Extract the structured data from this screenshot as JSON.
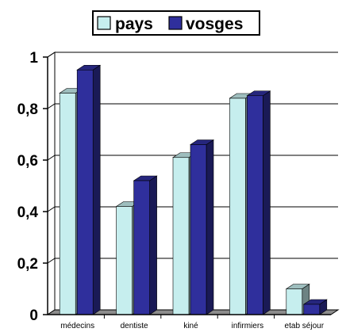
{
  "chart_data": {
    "type": "bar",
    "style": "3d-clustered",
    "categories": [
      "médecins",
      "dentiste",
      "kiné",
      "infirmiers",
      "etab séjour"
    ],
    "series": [
      {
        "name": "pays",
        "values": [
          0.86,
          0.42,
          0.61,
          0.84,
          0.1
        ]
      },
      {
        "name": "vosges",
        "values": [
          0.95,
          0.52,
          0.66,
          0.85,
          0.04
        ]
      }
    ],
    "ylim": [
      0,
      1
    ],
    "yticks": [
      0,
      0.2,
      0.4,
      0.6,
      0.8,
      1
    ],
    "ytick_labels": [
      "0",
      "0,2",
      "0,4",
      "0,6",
      "0,8",
      "1"
    ],
    "grid": true,
    "legend_position": "top-center",
    "colors": {
      "pays": "#c6eeee",
      "vosges": "#2f2f9c",
      "grid": "#000000",
      "floor": "#8c8c8c"
    }
  }
}
